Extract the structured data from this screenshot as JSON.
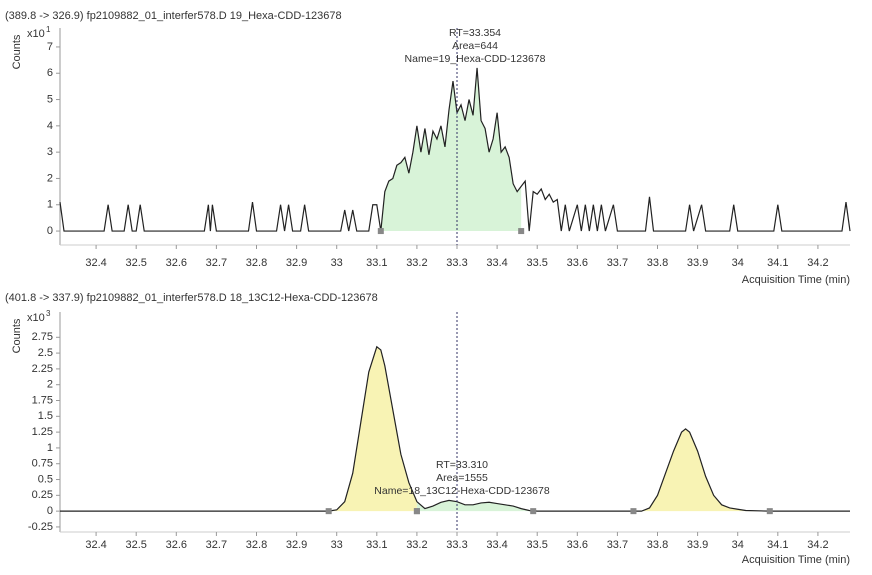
{
  "chart_data": [
    {
      "type": "line",
      "title": "(389.8 -> 326.9) fp2109882_01_interfer578.D 19_Hexa-CDD-123678",
      "y_label": "Counts",
      "y_multiplier": "x10",
      "y_exponent": "1",
      "x_label": "Acquisition Time (min)",
      "annotations": [
        "RT=33.354",
        "Area=644",
        "Name=19_Hexa-CDD-123678"
      ],
      "cursor_x": 33.3,
      "peaks": [
        {
          "start": 33.11,
          "end": 33.46,
          "color": "#d8f3d8"
        }
      ],
      "color": "#222222",
      "xlim": [
        32.31,
        34.28
      ],
      "ylim": [
        -0.53,
        7.72
      ],
      "xticks": [
        32.4,
        32.5,
        32.6,
        32.7,
        32.8,
        32.9,
        33,
        33.1,
        33.2,
        33.3,
        33.4,
        33.5,
        33.6,
        33.7,
        33.8,
        33.9,
        34,
        34.1,
        34.2
      ],
      "yticks": [
        0,
        1,
        2,
        3,
        4,
        5,
        6,
        7
      ],
      "x": [
        32.31,
        32.32,
        32.42,
        32.43,
        32.44,
        32.47,
        32.48,
        32.49,
        32.5,
        32.51,
        32.52,
        32.67,
        32.68,
        32.685,
        32.69,
        32.7,
        32.78,
        32.79,
        32.8,
        32.85,
        32.86,
        32.87,
        32.88,
        32.89,
        32.91,
        32.92,
        32.93,
        33.01,
        33.02,
        33.03,
        33.04,
        33.05,
        33.08,
        33.09,
        33.1,
        33.11,
        33.12,
        33.13,
        33.14,
        33.15,
        33.16,
        33.17,
        33.18,
        33.19,
        33.2,
        33.21,
        33.22,
        33.23,
        33.24,
        33.25,
        33.26,
        33.27,
        33.28,
        33.29,
        33.3,
        33.31,
        33.32,
        33.33,
        33.34,
        33.35,
        33.36,
        33.37,
        33.38,
        33.39,
        33.4,
        33.41,
        33.42,
        33.43,
        33.44,
        33.45,
        33.46,
        33.47,
        33.48,
        33.49,
        33.5,
        33.51,
        33.52,
        33.53,
        33.54,
        33.55,
        33.56,
        33.57,
        33.58,
        33.6,
        33.61,
        33.62,
        33.63,
        33.64,
        33.65,
        33.66,
        33.67,
        33.69,
        33.7,
        33.77,
        33.78,
        33.79,
        33.87,
        33.88,
        33.89,
        33.91,
        33.92,
        33.98,
        33.99,
        34.0,
        34.09,
        34.1,
        34.11,
        34.26,
        34.27,
        34.28
      ],
      "values": [
        1.1,
        0,
        0,
        1,
        0,
        0,
        1,
        0,
        0,
        1,
        0,
        0,
        1,
        0,
        1,
        0,
        0,
        1.1,
        0,
        0,
        1,
        0,
        1,
        0,
        0,
        1,
        0,
        0,
        0.8,
        0,
        0.8,
        0,
        0,
        1,
        1,
        0,
        1.5,
        1.9,
        2.0,
        2.5,
        2.6,
        2.8,
        2.2,
        3.0,
        4.0,
        3.0,
        3.9,
        2.9,
        3.8,
        3.5,
        4.0,
        3.2,
        4.6,
        5.7,
        4.5,
        4.8,
        4.2,
        5.0,
        4.4,
        6.2,
        4.2,
        3.9,
        3.0,
        3.5,
        4.5,
        3.0,
        3.2,
        2.8,
        1.8,
        1.5,
        1.7,
        1.9,
        0,
        1.5,
        1.4,
        1.6,
        1.2,
        1.4,
        1.1,
        1.2,
        0,
        1,
        0,
        1,
        0,
        1,
        0,
        1,
        0,
        1,
        0,
        1,
        0,
        0,
        1.3,
        0,
        0,
        1,
        0,
        1,
        0,
        0,
        1,
        0,
        0,
        1,
        0,
        0,
        1.1,
        0
      ]
    },
    {
      "type": "line",
      "title": "(401.8 -> 337.9) fp2109882_01_interfer578.D 18_13C12-Hexa-CDD-123678",
      "y_label": "Counts",
      "y_multiplier": "x10",
      "y_exponent": "3",
      "x_label": "Acquisition Time (min)",
      "annotations": [
        "RT=33.310",
        "Area=1555",
        "Name=18_13C12-Hexa-CDD-123678"
      ],
      "cursor_x": 33.3,
      "peaks": [
        {
          "start": 32.98,
          "end": 33.2,
          "color": "#f8f3b4"
        },
        {
          "start": 33.2,
          "end": 33.49,
          "color": "#d8f3d8"
        },
        {
          "start": 33.74,
          "end": 34.08,
          "color": "#f8f3b4"
        }
      ],
      "color": "#222222",
      "xlim": [
        32.31,
        34.28
      ],
      "ylim": [
        -0.33,
        3.15
      ],
      "xticks": [
        32.4,
        32.5,
        32.6,
        32.7,
        32.8,
        32.9,
        33,
        33.1,
        33.2,
        33.3,
        33.4,
        33.5,
        33.6,
        33.7,
        33.8,
        33.9,
        34,
        34.1,
        34.2
      ],
      "yticks": [
        -0.25,
        0,
        0.25,
        0.5,
        0.75,
        1,
        1.25,
        1.5,
        1.75,
        2,
        2.25,
        2.5,
        2.75
      ],
      "x": [
        32.31,
        32.98,
        33.0,
        33.02,
        33.04,
        33.06,
        33.08,
        33.1,
        33.11,
        33.12,
        33.14,
        33.16,
        33.18,
        33.2,
        33.22,
        33.24,
        33.26,
        33.28,
        33.3,
        33.32,
        33.34,
        33.36,
        33.38,
        33.4,
        33.42,
        33.44,
        33.46,
        33.48,
        33.5,
        33.74,
        33.76,
        33.78,
        33.8,
        33.82,
        33.84,
        33.86,
        33.87,
        33.88,
        33.9,
        33.92,
        33.94,
        33.96,
        33.98,
        34.0,
        34.02,
        34.08,
        34.28
      ],
      "values": [
        0,
        0,
        0.02,
        0.15,
        0.6,
        1.4,
        2.2,
        2.6,
        2.55,
        2.3,
        1.6,
        0.9,
        0.45,
        0.15,
        0.04,
        0.08,
        0.14,
        0.17,
        0.15,
        0.1,
        0.1,
        0.13,
        0.14,
        0.12,
        0.1,
        0.08,
        0.04,
        0.01,
        0,
        0,
        0,
        0.05,
        0.25,
        0.6,
        0.95,
        1.25,
        1.3,
        1.25,
        0.95,
        0.55,
        0.25,
        0.1,
        0.05,
        0.03,
        0.01,
        0,
        0
      ]
    }
  ]
}
